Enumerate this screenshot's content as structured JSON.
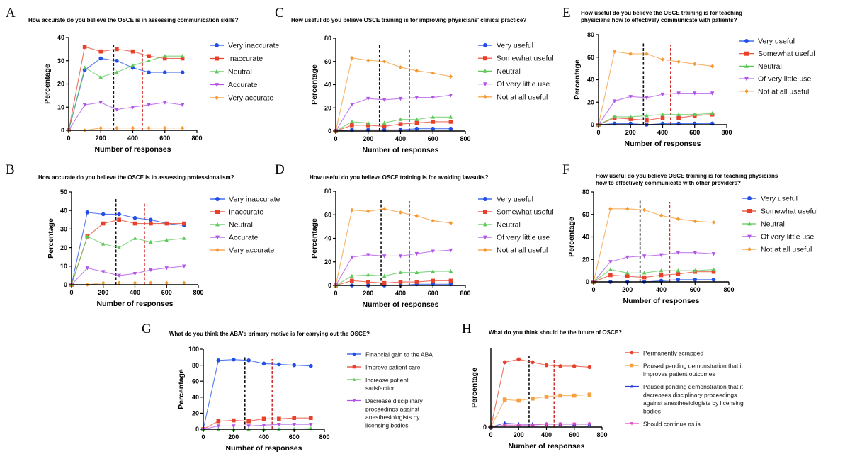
{
  "chart_data": [
    {
      "panel": "A",
      "type": "line",
      "title": "How accurate do you believe the OSCE is in assessing communication skills?",
      "xlabel": "Number of responses",
      "ylabel": "Percentage",
      "xlim": [
        0,
        800
      ],
      "ylim": [
        0,
        40
      ],
      "xticks": [
        0,
        200,
        400,
        600,
        800
      ],
      "yticks": [
        0,
        10,
        20,
        30,
        40
      ],
      "x": [
        0,
        100,
        200,
        300,
        400,
        500,
        600,
        710
      ],
      "reference_lines": [
        {
          "x": 280,
          "color": "#111111"
        },
        {
          "x": 460,
          "color": "#d03030"
        }
      ],
      "legend": "right",
      "series": [
        {
          "name": "Very inaccurate",
          "color": "#1f4fe8",
          "marker": "circle",
          "values": [
            0,
            26,
            31,
            30,
            27,
            25,
            25,
            25
          ]
        },
        {
          "name": "Inaccurate",
          "color": "#e8412b",
          "marker": "square",
          "values": [
            0,
            36,
            34,
            35,
            34,
            32,
            31,
            31
          ]
        },
        {
          "name": "Neutral",
          "color": "#5cc85a",
          "marker": "triangle-up",
          "values": [
            0,
            27,
            23,
            25,
            28,
            30,
            32,
            32
          ]
        },
        {
          "name": "Accurate",
          "color": "#b055e8",
          "marker": "triangle-down",
          "values": [
            0,
            11,
            12,
            9,
            10,
            11,
            12,
            11
          ]
        },
        {
          "name": "Very accurate",
          "color": "#f59a35",
          "marker": "diamond",
          "values": [
            0,
            0,
            1,
            1,
            1,
            1,
            1,
            1
          ]
        }
      ]
    },
    {
      "panel": "B",
      "type": "line",
      "title": "How accurate do you believe the OSCE is in assessing professionalism?",
      "xlabel": "Number of responses",
      "ylabel": "Percentage",
      "xlim": [
        0,
        800
      ],
      "ylim": [
        0,
        50
      ],
      "xticks": [
        0,
        200,
        400,
        600,
        800
      ],
      "yticks": [
        0,
        10,
        20,
        30,
        40,
        50
      ],
      "x": [
        0,
        100,
        200,
        300,
        400,
        500,
        600,
        710
      ],
      "reference_lines": [
        {
          "x": 280,
          "color": "#111111"
        },
        {
          "x": 460,
          "color": "#d03030"
        }
      ],
      "legend": "right",
      "series": [
        {
          "name": "Very inaccurate",
          "color": "#1f4fe8",
          "marker": "circle",
          "values": [
            0,
            39,
            38,
            38,
            36,
            35,
            33,
            32
          ]
        },
        {
          "name": "Inaccurate",
          "color": "#e8412b",
          "marker": "square",
          "values": [
            0,
            26,
            33,
            35,
            33,
            33,
            33,
            33
          ]
        },
        {
          "name": "Neutral",
          "color": "#5cc85a",
          "marker": "triangle-up",
          "values": [
            0,
            26,
            22,
            20,
            25,
            23,
            24,
            25
          ]
        },
        {
          "name": "Accurate",
          "color": "#b055e8",
          "marker": "triangle-down",
          "values": [
            0,
            9,
            7,
            5,
            6,
            8,
            9,
            10
          ]
        },
        {
          "name": "Very accurate",
          "color": "#f59a35",
          "marker": "diamond",
          "values": [
            0,
            0,
            1,
            1,
            1,
            1,
            1,
            1
          ]
        }
      ]
    },
    {
      "panel": "C",
      "type": "line",
      "title": "How useful do you believe OSCE training is for improving physicians' clinical practice?",
      "xlabel": "Number of responses",
      "ylabel": "Percentage",
      "xlim": [
        0,
        800
      ],
      "ylim": [
        0,
        80
      ],
      "xticks": [
        0,
        200,
        400,
        600,
        800
      ],
      "yticks": [
        0,
        20,
        40,
        60,
        80
      ],
      "x": [
        0,
        100,
        200,
        300,
        400,
        500,
        600,
        710
      ],
      "reference_lines": [
        {
          "x": 270,
          "color": "#111111"
        },
        {
          "x": 455,
          "color": "#d03030"
        }
      ],
      "legend": "right",
      "series": [
        {
          "name": "Very useful",
          "color": "#1f4fe8",
          "marker": "circle",
          "values": [
            0,
            1,
            1,
            1,
            1,
            2,
            2,
            2
          ]
        },
        {
          "name": "Somewhat useful",
          "color": "#e8412b",
          "marker": "square",
          "values": [
            0,
            5,
            5,
            4,
            6,
            7,
            8,
            8
          ]
        },
        {
          "name": "Neutral",
          "color": "#5cc85a",
          "marker": "triangle-up",
          "values": [
            0,
            8,
            7,
            7,
            10,
            10,
            12,
            12
          ]
        },
        {
          "name": "Of very little use",
          "color": "#b055e8",
          "marker": "triangle-down",
          "values": [
            0,
            23,
            28,
            27,
            28,
            29,
            29,
            31
          ]
        },
        {
          "name": "Not at all useful",
          "color": "#f59a35",
          "marker": "diamond",
          "values": [
            0,
            63,
            61,
            60,
            55,
            52,
            50,
            47
          ]
        }
      ]
    },
    {
      "panel": "D",
      "type": "line",
      "title": "How useful do you believe OSCE training is for avoiding lawsuits?",
      "xlabel": "Number of responses",
      "ylabel": "Percentage",
      "xlim": [
        0,
        800
      ],
      "ylim": [
        0,
        80
      ],
      "xticks": [
        0,
        200,
        400,
        600,
        800
      ],
      "yticks": [
        0,
        20,
        40,
        60,
        80
      ],
      "x": [
        0,
        100,
        200,
        300,
        400,
        500,
        600,
        710
      ],
      "reference_lines": [
        {
          "x": 280,
          "color": "#111111"
        },
        {
          "x": 455,
          "color": "#d03030"
        }
      ],
      "legend": "right",
      "series": [
        {
          "name": "Very useful",
          "color": "#1f4fe8",
          "marker": "circle",
          "values": [
            0,
            0,
            0,
            0,
            0,
            1,
            1,
            1
          ]
        },
        {
          "name": "Somewhat useful",
          "color": "#e8412b",
          "marker": "square",
          "values": [
            0,
            4,
            3,
            2,
            3,
            3,
            4,
            4
          ]
        },
        {
          "name": "Neutral",
          "color": "#5cc85a",
          "marker": "triangle-up",
          "values": [
            0,
            8,
            9,
            8,
            11,
            11,
            12,
            12
          ]
        },
        {
          "name": "Of very little use",
          "color": "#b055e8",
          "marker": "triangle-down",
          "values": [
            0,
            24,
            26,
            25,
            25,
            27,
            29,
            30
          ]
        },
        {
          "name": "Not at all useful",
          "color": "#f59a35",
          "marker": "diamond",
          "values": [
            0,
            64,
            63,
            65,
            62,
            59,
            55,
            53
          ]
        }
      ]
    },
    {
      "panel": "E",
      "type": "line",
      "title": "How useful do you believe the OSCE training is for teaching physicians how to effectively communicate with patients?",
      "title_lines": [
        "How useful do you believe the OSCE training is for teaching",
        "physicians how to effectively communicate with patients?"
      ],
      "xlabel": "Number of responses",
      "ylabel": "Percentage",
      "xlim": [
        0,
        800
      ],
      "ylim": [
        0,
        80
      ],
      "xticks": [
        0,
        200,
        400,
        600,
        800
      ],
      "yticks": [
        0,
        20,
        40,
        60,
        80
      ],
      "x": [
        0,
        100,
        200,
        300,
        400,
        500,
        600,
        710
      ],
      "reference_lines": [
        {
          "x": 280,
          "color": "#111111"
        },
        {
          "x": 450,
          "color": "#d03030"
        }
      ],
      "legend": "right",
      "series": [
        {
          "name": "Very useful",
          "color": "#1f4fe8",
          "marker": "circle",
          "values": [
            0,
            1,
            1,
            0,
            1,
            1,
            1,
            1
          ]
        },
        {
          "name": "Somewhat useful",
          "color": "#e8412b",
          "marker": "square",
          "values": [
            0,
            6,
            5,
            4,
            6,
            6,
            8,
            9
          ]
        },
        {
          "name": "Neutral",
          "color": "#5cc85a",
          "marker": "triangle-up",
          "values": [
            0,
            7,
            7,
            8,
            9,
            9,
            9,
            10
          ]
        },
        {
          "name": "Of very little use",
          "color": "#b055e8",
          "marker": "triangle-down",
          "values": [
            0,
            21,
            25,
            24,
            27,
            28,
            28,
            28
          ]
        },
        {
          "name": "Not at all useful",
          "color": "#f59a35",
          "marker": "diamond",
          "values": [
            0,
            65,
            63,
            63,
            58,
            56,
            54,
            52
          ]
        }
      ]
    },
    {
      "panel": "F",
      "type": "line",
      "title": "How useful do you believe OSCE training is for teaching physicians how to effectively communicate with other providers?",
      "title_lines": [
        "How useful do you believe OSCE training is for teaching physicians",
        "how to effectively communicate with other providers?"
      ],
      "xlabel": "Number of responses",
      "ylabel": "Percentage",
      "xlim": [
        0,
        800
      ],
      "ylim": [
        0,
        80
      ],
      "xticks": [
        0,
        200,
        400,
        600,
        800
      ],
      "yticks": [
        0,
        20,
        40,
        60,
        80
      ],
      "x": [
        0,
        100,
        200,
        300,
        400,
        500,
        600,
        710
      ],
      "reference_lines": [
        {
          "x": 275,
          "color": "#111111"
        },
        {
          "x": 450,
          "color": "#d03030"
        }
      ],
      "legend": "right",
      "series": [
        {
          "name": "Very useful",
          "color": "#1f4fe8",
          "marker": "circle",
          "values": [
            0,
            0,
            0,
            0,
            1,
            2,
            2,
            2
          ]
        },
        {
          "name": "Somewhat useful",
          "color": "#e8412b",
          "marker": "square",
          "values": [
            0,
            6,
            5,
            4,
            6,
            7,
            9,
            9
          ]
        },
        {
          "name": "Neutral",
          "color": "#5cc85a",
          "marker": "triangle-up",
          "values": [
            0,
            11,
            8,
            8,
            10,
            10,
            10,
            11
          ]
        },
        {
          "name": "Of very little use",
          "color": "#b055e8",
          "marker": "triangle-down",
          "values": [
            0,
            18,
            22,
            23,
            24,
            26,
            26,
            25
          ]
        },
        {
          "name": "Not at all useful",
          "color": "#f59a35",
          "marker": "diamond",
          "values": [
            0,
            65,
            65,
            64,
            59,
            56,
            54,
            53
          ]
        }
      ]
    },
    {
      "panel": "G",
      "type": "line",
      "title": "What do you think the ABA's primary motive is for carrying out the OSCE?",
      "xlabel": "Number of responses",
      "ylabel": "Percentage",
      "xlim": [
        0,
        800
      ],
      "ylim": [
        0,
        100
      ],
      "xticks": [
        0,
        200,
        400,
        600,
        800
      ],
      "yticks": [
        0,
        20,
        40,
        60,
        80,
        100
      ],
      "x": [
        0,
        100,
        200,
        300,
        400,
        500,
        600,
        710
      ],
      "reference_lines": [
        {
          "x": 275,
          "color": "#111111"
        },
        {
          "x": 455,
          "color": "#d03030"
        }
      ],
      "legend": "right",
      "series": [
        {
          "name": "Financial gain to the ABA",
          "lines": [
            "Financial gain to the ABA"
          ],
          "color": "#1f4fe8",
          "marker": "circle",
          "values": [
            0,
            86,
            87,
            86,
            82,
            81,
            80,
            79
          ]
        },
        {
          "name": "Improve patient care",
          "lines": [
            "Improve patient care"
          ],
          "color": "#e8412b",
          "marker": "square",
          "values": [
            0,
            10,
            11,
            10,
            13,
            13,
            14,
            14
          ]
        },
        {
          "name": "Increase patient satisfaction",
          "lines": [
            "Increase patient",
            "satisfaction"
          ],
          "color": "#5cc85a",
          "marker": "triangle-up",
          "values": [
            0,
            0,
            0,
            0,
            0,
            0,
            0,
            1
          ]
        },
        {
          "name": "Decrease disciplinary proceedings against anesthesiologists by licensing bodies",
          "lines": [
            "Decrease disciplinary",
            "proceedings against",
            "anesthesiologists by",
            "licensing bodies"
          ],
          "color": "#b055e8",
          "marker": "triangle-down",
          "values": [
            0,
            4,
            4,
            4,
            5,
            6,
            6,
            6
          ]
        }
      ]
    },
    {
      "panel": "H",
      "type": "line",
      "title": "What do you think should be the future of OSCE?",
      "xlabel": "Number of responses",
      "ylabel": "Percentage",
      "xlim": [
        0,
        800
      ],
      "ylim": [
        0,
        80
      ],
      "xticks": [
        0,
        200,
        400,
        600,
        800
      ],
      "yticks": [
        0
      ],
      "x": [
        0,
        100,
        200,
        300,
        400,
        500,
        600,
        710
      ],
      "reference_lines": [
        {
          "x": 275,
          "color": "#111111"
        },
        {
          "x": 455,
          "color": "#d03030"
        }
      ],
      "legend": "right",
      "series": [
        {
          "name": "Permanently scrapped",
          "lines": [
            "Permanently scrapped"
          ],
          "color": "#e8412b",
          "marker": "circle",
          "values": [
            0,
            66,
            69,
            66,
            63,
            62,
            62,
            61
          ]
        },
        {
          "name": "Paused pending demonstration that it improves patient outcomes",
          "lines": [
            "  Paused pending demonstration that it",
            "improves patient outcomes"
          ],
          "color": "#f5a040",
          "marker": "square",
          "values": [
            0,
            28,
            27,
            29,
            31,
            32,
            32,
            33
          ]
        },
        {
          "name": "Paused pending demonstration that it decreases disciplinary proceedings against anesthesiologists by licensing bodies",
          "lines": [
            "  Paused pending demonstration that it",
            "decreases disciplinary proceedings",
            "against anesthesiologists by licensing",
            "bodies"
          ],
          "color": "#2a3fd8",
          "marker": "triangle-up",
          "values": [
            0,
            4,
            3,
            3,
            3,
            3,
            3,
            3
          ]
        },
        {
          "name": "Should continue as is",
          "lines": [
            "Should continue as is"
          ],
          "color": "#e04cc0",
          "marker": "triangle-down",
          "values": [
            0,
            2,
            2,
            2,
            3,
            3,
            3,
            3
          ]
        }
      ]
    }
  ]
}
